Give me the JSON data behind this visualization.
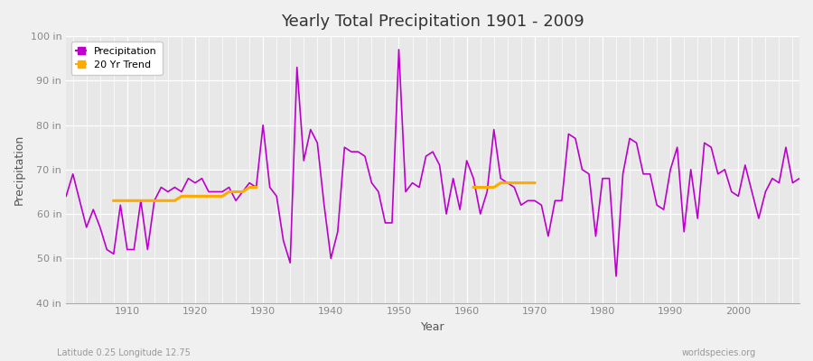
{
  "title": "Yearly Total Precipitation 1901 - 2009",
  "xlabel": "Year",
  "ylabel": "Precipitation",
  "subtitle": "Latitude 0.25 Longitude 12.75",
  "watermark": "worldspecies.org",
  "ylim": [
    40,
    100
  ],
  "ytick_labels": [
    "40 in",
    "50 in",
    "60 in",
    "70 in",
    "80 in",
    "90 in",
    "100 in"
  ],
  "ytick_values": [
    40,
    50,
    60,
    70,
    80,
    90,
    100
  ],
  "bg_color": "#f0f0f0",
  "plot_bg_color": "#e8e8e8",
  "line_color": "#bb00cc",
  "trend_color": "#ffaa00",
  "years": [
    1901,
    1902,
    1903,
    1904,
    1905,
    1906,
    1907,
    1908,
    1909,
    1910,
    1911,
    1912,
    1913,
    1914,
    1915,
    1916,
    1917,
    1918,
    1919,
    1920,
    1921,
    1922,
    1923,
    1924,
    1925,
    1926,
    1927,
    1928,
    1929,
    1930,
    1931,
    1932,
    1933,
    1934,
    1935,
    1936,
    1937,
    1938,
    1939,
    1940,
    1941,
    1942,
    1943,
    1944,
    1945,
    1946,
    1947,
    1948,
    1949,
    1950,
    1951,
    1952,
    1953,
    1954,
    1955,
    1956,
    1957,
    1958,
    1959,
    1960,
    1961,
    1962,
    1963,
    1964,
    1965,
    1966,
    1967,
    1968,
    1969,
    1970,
    1971,
    1972,
    1973,
    1974,
    1975,
    1976,
    1977,
    1978,
    1979,
    1980,
    1981,
    1982,
    1983,
    1984,
    1985,
    1986,
    1987,
    1988,
    1989,
    1990,
    1991,
    1992,
    1993,
    1994,
    1995,
    1996,
    1997,
    1998,
    1999,
    2000,
    2001,
    2002,
    2003,
    2004,
    2005,
    2006,
    2007,
    2008,
    2009
  ],
  "precip": [
    64,
    69,
    63,
    57,
    61,
    57,
    52,
    51,
    62,
    52,
    52,
    63,
    52,
    63,
    66,
    65,
    66,
    65,
    68,
    67,
    68,
    65,
    65,
    65,
    66,
    63,
    65,
    67,
    66,
    80,
    66,
    64,
    54,
    49,
    93,
    72,
    79,
    76,
    62,
    50,
    56,
    75,
    74,
    74,
    73,
    67,
    65,
    58,
    58,
    97,
    65,
    67,
    66,
    73,
    74,
    71,
    60,
    68,
    61,
    72,
    68,
    60,
    65,
    79,
    68,
    67,
    66,
    62,
    63,
    63,
    62,
    55,
    63,
    63,
    78,
    77,
    70,
    69,
    55,
    68,
    68,
    46,
    69,
    77,
    76,
    69,
    69,
    62,
    61,
    70,
    75,
    56,
    70,
    59,
    76,
    75,
    69,
    70,
    65,
    64,
    71,
    65,
    59,
    65,
    68,
    67,
    75,
    67,
    68
  ],
  "trend_seg1_years": [
    1908,
    1909,
    1910,
    1911,
    1912,
    1913,
    1914,
    1915,
    1916,
    1917,
    1918,
    1919,
    1920,
    1921,
    1922,
    1923,
    1924,
    1925,
    1926,
    1927,
    1928,
    1929
  ],
  "trend_seg1_values": [
    63,
    63,
    63,
    63,
    63,
    63,
    63,
    63,
    63,
    63,
    64,
    64,
    64,
    64,
    64,
    64,
    64,
    65,
    65,
    65,
    66,
    66
  ],
  "trend_seg2_years": [
    1961,
    1962,
    1963,
    1964,
    1965,
    1966,
    1967,
    1968,
    1969,
    1970
  ],
  "trend_seg2_values": [
    66,
    66,
    66,
    66,
    67,
    67,
    67,
    67,
    67,
    67
  ]
}
